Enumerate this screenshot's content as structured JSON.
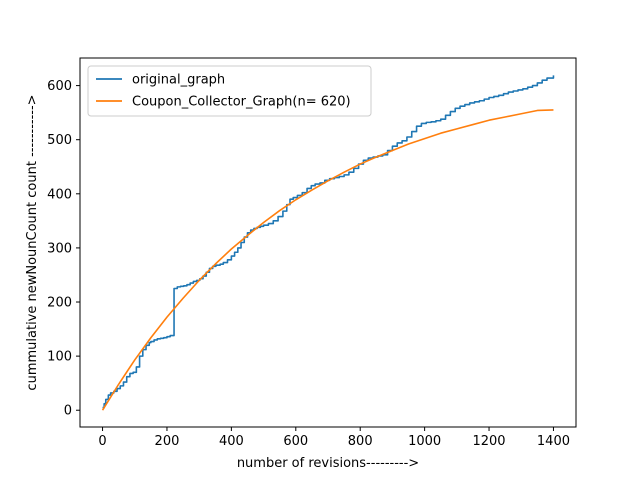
{
  "chart_data": {
    "type": "line",
    "title": "",
    "xlabel": "number of revisions--------->",
    "ylabel": "cummulative newNounCount count ----------->",
    "xlim": [
      -70,
      1470
    ],
    "ylim": [
      -31,
      651
    ],
    "xticks": [
      0,
      200,
      400,
      600,
      800,
      1000,
      1200,
      1400
    ],
    "yticks": [
      0,
      100,
      200,
      300,
      400,
      500,
      600
    ],
    "grid": false,
    "legend_position": "top-left",
    "series": [
      {
        "name": "original_graph",
        "color": "#1f77b4",
        "step": true,
        "x": [
          0,
          5,
          10,
          18,
          25,
          35,
          45,
          55,
          65,
          75,
          85,
          95,
          105,
          115,
          125,
          135,
          145,
          150,
          160,
          170,
          180,
          190,
          200,
          210,
          220,
          222,
          232,
          242,
          252,
          262,
          272,
          282,
          292,
          302,
          312,
          322,
          332,
          342,
          352,
          365,
          375,
          388,
          400,
          410,
          420,
          430,
          440,
          450,
          460,
          470,
          480,
          490,
          500,
          515,
          530,
          545,
          560,
          572,
          582,
          592,
          605,
          620,
          635,
          648,
          660,
          675,
          690,
          705,
          720,
          735,
          750,
          765,
          780,
          795,
          810,
          825,
          840,
          855,
          870,
          885,
          900,
          915,
          930,
          945,
          960,
          975,
          990,
          1005,
          1020,
          1035,
          1050,
          1065,
          1080,
          1095,
          1110,
          1125,
          1140,
          1155,
          1170,
          1185,
          1200,
          1215,
          1230,
          1245,
          1260,
          1275,
          1290,
          1305,
          1320,
          1335,
          1350,
          1365,
          1380,
          1400
        ],
        "y": [
          5,
          12,
          20,
          28,
          32,
          35,
          40,
          45,
          52,
          62,
          68,
          70,
          80,
          100,
          112,
          120,
          125,
          127,
          130,
          132,
          133,
          134,
          136,
          138,
          138,
          225,
          228,
          229,
          230,
          232,
          235,
          238,
          240,
          243,
          248,
          255,
          262,
          266,
          268,
          270,
          273,
          278,
          285,
          292,
          300,
          310,
          320,
          328,
          333,
          336,
          338,
          340,
          342,
          345,
          350,
          358,
          368,
          380,
          390,
          393,
          397,
          402,
          410,
          415,
          418,
          420,
          425,
          428,
          430,
          432,
          435,
          440,
          447,
          455,
          462,
          466,
          468,
          470,
          472,
          480,
          488,
          494,
          498,
          505,
          515,
          525,
          530,
          532,
          533,
          535,
          538,
          545,
          552,
          558,
          562,
          565,
          568,
          570,
          572,
          575,
          578,
          580,
          582,
          585,
          588,
          590,
          592,
          594,
          597,
          600,
          605,
          610,
          614,
          619
        ]
      },
      {
        "name": "Coupon_Collector_Graph(n= 620)",
        "color": "#ff7f0e",
        "step": false,
        "x": [
          0,
          50,
          100,
          150,
          200,
          250,
          300,
          350,
          400,
          450,
          500,
          550,
          600,
          650,
          700,
          750,
          800,
          850,
          900,
          950,
          1000,
          1050,
          1100,
          1150,
          1200,
          1250,
          1300,
          1350,
          1400
        ],
        "y": [
          0,
          48,
          93,
          134,
          172,
          207,
          240,
          270,
          298,
          323,
          347,
          369,
          389,
          407,
          424,
          440,
          455,
          468,
          480,
          492,
          502,
          512,
          520,
          528,
          536,
          542,
          548,
          554,
          555
        ]
      }
    ]
  }
}
